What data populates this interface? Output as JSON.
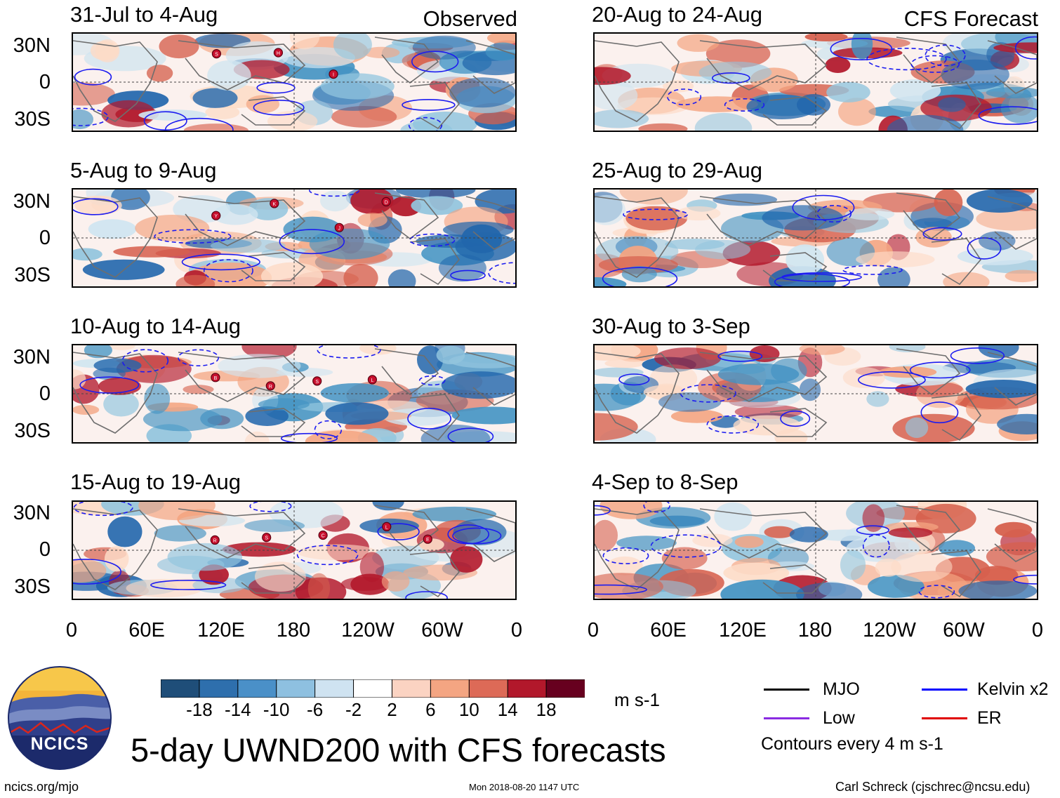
{
  "panels_left": [
    {
      "title": "31-Jul to 4-Aug",
      "tag": "Observed"
    },
    {
      "title": "5-Aug to 9-Aug"
    },
    {
      "title": "10-Aug to 14-Aug"
    },
    {
      "title": "15-Aug to 19-Aug"
    }
  ],
  "panels_right": [
    {
      "title": "20-Aug to 24-Aug",
      "tag": "CFS Forecast"
    },
    {
      "title": "25-Aug to 29-Aug"
    },
    {
      "title": "30-Aug to 3-Sep"
    },
    {
      "title": "4-Sep to 8-Sep"
    }
  ],
  "y_ticks": [
    "30N",
    "0",
    "30S"
  ],
  "x_ticks": [
    "0",
    "60E",
    "120E",
    "180",
    "120W",
    "60W",
    "0"
  ],
  "colorbar": {
    "ticks": [
      "-18",
      "-14",
      "-10",
      "-6",
      "-2",
      "2",
      "6",
      "10",
      "14",
      "18"
    ],
    "colors": [
      "#1f4e79",
      "#2e6fad",
      "#4a90c8",
      "#8ec0e0",
      "#cfe3f1",
      "#ffffff",
      "#fbd3c2",
      "#f4a582",
      "#dd6a57",
      "#b2182b",
      "#67001f"
    ],
    "units": "m s-1"
  },
  "legend": {
    "items": [
      {
        "label": "MJO",
        "color": "#000000"
      },
      {
        "label": "Kelvin x2",
        "color": "#0000ff"
      },
      {
        "label": "Low",
        "color": "#8a2be2"
      },
      {
        "label": "ER",
        "color": "#e00000"
      }
    ],
    "contour_note": "Contours every 4 m s-1"
  },
  "logo_text": "NCICS",
  "main_title": "5-day UWND200 with CFS forecasts",
  "footer": {
    "left": "ncics.org/mjo",
    "center": "Mon 2018-08-20 1147 UTC",
    "right": "Carl Schreck (cjschrec@ncsu.edu)"
  },
  "storm_markers": [
    {
      "panel": 0,
      "labels": [
        "S",
        "H",
        "I"
      ]
    },
    {
      "panel": 1,
      "labels": [
        "Y",
        "K",
        "J",
        "D"
      ]
    },
    {
      "panel": 2,
      "labels": [
        "B",
        "R",
        "S",
        "L"
      ]
    },
    {
      "panel": 3,
      "labels": [
        "R",
        "S",
        "C",
        "L",
        "E"
      ]
    }
  ]
}
